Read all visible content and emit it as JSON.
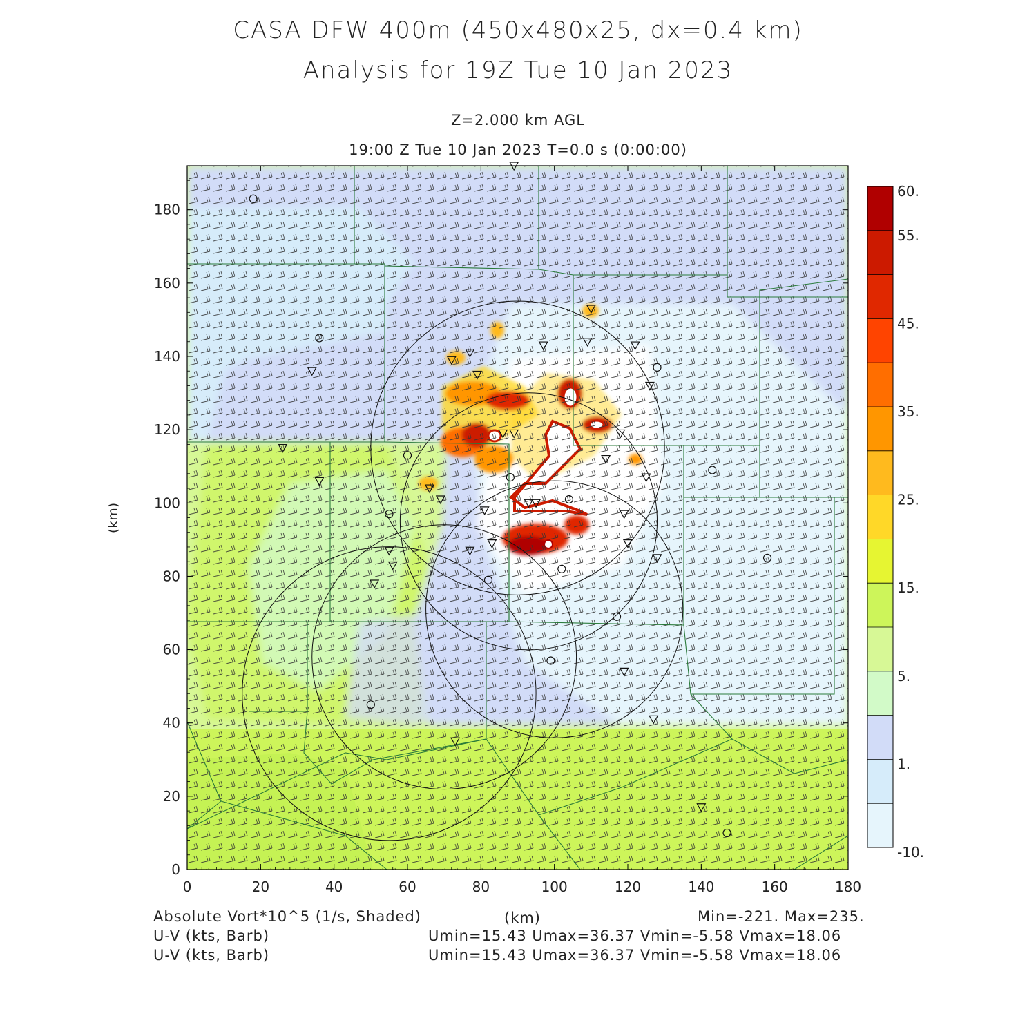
{
  "title": {
    "line1": "CASA DFW 400m (450x480x25, dx=0.4 km)",
    "line2": "Analysis for 19Z Tue 10 Jan 2023"
  },
  "subtitle": {
    "level": "Z=2.000 km AGL",
    "time": "19:00 Z Tue 10 Jan 2023   T=0.0 s (0:00:00)"
  },
  "axes": {
    "ylabel": "(km)",
    "xlabel": "(km)",
    "xlim": [
      0,
      180
    ],
    "ylim": [
      0,
      192
    ],
    "xticks": [
      0,
      20,
      40,
      60,
      80,
      100,
      120,
      140,
      160,
      180
    ],
    "yticks": [
      0,
      20,
      40,
      60,
      80,
      100,
      120,
      140,
      160,
      180
    ]
  },
  "colorbar": {
    "labels": [
      "60.",
      "55.",
      "45.",
      "35.",
      "25.",
      "15.",
      "5.",
      "1.",
      "-10."
    ],
    "colors": [
      "#b00000",
      "#cc1a00",
      "#e02800",
      "#ff4400",
      "#ff6e00",
      "#ff9600",
      "#ffba1e",
      "#ffd828",
      "#e6f532",
      "#cdf55a",
      "#d7f896",
      "#d2fac8",
      "#d2dcf8",
      "#d6ecfa",
      "#e6f5fc"
    ]
  },
  "footer": {
    "field": "Absolute Vort*10^5 (1/s, Shaded)",
    "xunit": "(km)",
    "minmax": "Min=-221. Max=235.",
    "barb1_label": "U-V (kts, Barb)",
    "barb1_stats": "Umin=15.43 Umax=36.37 Vmin=-5.58 Vmax=18.06",
    "barb2_label": "U-V (kts, Barb)",
    "barb2_stats": "Umin=15.43 Umax=36.37 Vmin=-5.58 Vmax=18.06"
  },
  "map": {
    "radar_rings": [
      {
        "cx": 90,
        "cy": 115,
        "r": 40
      },
      {
        "cx": 93,
        "cy": 95,
        "r": 35
      },
      {
        "cx": 100,
        "cy": 71,
        "r": 35
      },
      {
        "cx": 70,
        "cy": 58,
        "r": 36
      },
      {
        "cx": 55,
        "cy": 48,
        "r": 40
      }
    ],
    "station_circles": [
      [
        18,
        183
      ],
      [
        36,
        145
      ],
      [
        60,
        113
      ],
      [
        55,
        97
      ],
      [
        88,
        107
      ],
      [
        82,
        79
      ],
      [
        102,
        82
      ],
      [
        99,
        57
      ],
      [
        117,
        69
      ],
      [
        128,
        137
      ],
      [
        143,
        109
      ],
      [
        158,
        85
      ],
      [
        50,
        45
      ],
      [
        147,
        10
      ],
      [
        104,
        101
      ]
    ],
    "station_triangles": [
      [
        89,
        192
      ],
      [
        110,
        153
      ],
      [
        77,
        141
      ],
      [
        72,
        139
      ],
      [
        97,
        143
      ],
      [
        109,
        144
      ],
      [
        122,
        143
      ],
      [
        126,
        132
      ],
      [
        34,
        136
      ],
      [
        79,
        135
      ],
      [
        86,
        119
      ],
      [
        89,
        119
      ],
      [
        118,
        119
      ],
      [
        26,
        115
      ],
      [
        36,
        106
      ],
      [
        66,
        104
      ],
      [
        69,
        101
      ],
      [
        114,
        112
      ],
      [
        125,
        107
      ],
      [
        81,
        98
      ],
      [
        93,
        100
      ],
      [
        95,
        100
      ],
      [
        119,
        97
      ],
      [
        83,
        89
      ],
      [
        120,
        89
      ],
      [
        77,
        87
      ],
      [
        55,
        87
      ],
      [
        56,
        83
      ],
      [
        51,
        78
      ],
      [
        128,
        85
      ],
      [
        119,
        54
      ],
      [
        127,
        41
      ],
      [
        73,
        35
      ],
      [
        140,
        17
      ]
    ]
  }
}
